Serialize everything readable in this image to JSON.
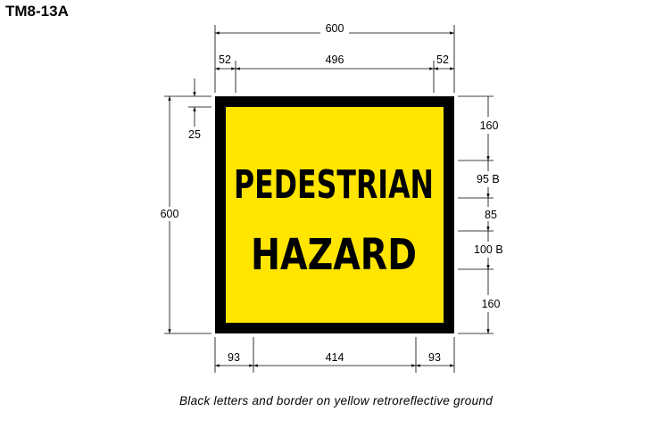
{
  "title": "TM8-13A",
  "caption": "Black letters and border on yellow retroreflective ground",
  "sign": {
    "line1": "PEDESTRIAN",
    "line2": "HAZARD",
    "background_color": "#FFE500",
    "border_color": "#000000"
  },
  "dimensions": {
    "top_total": "600",
    "top_left": "52",
    "top_middle": "496",
    "top_right": "52",
    "left_total": "600",
    "left_border": "25",
    "right_1": "160",
    "right_2": "95 B",
    "right_3": "85",
    "right_4": "100 B",
    "right_5": "160",
    "bottom_left": "93",
    "bottom_middle": "414",
    "bottom_right": "93"
  }
}
